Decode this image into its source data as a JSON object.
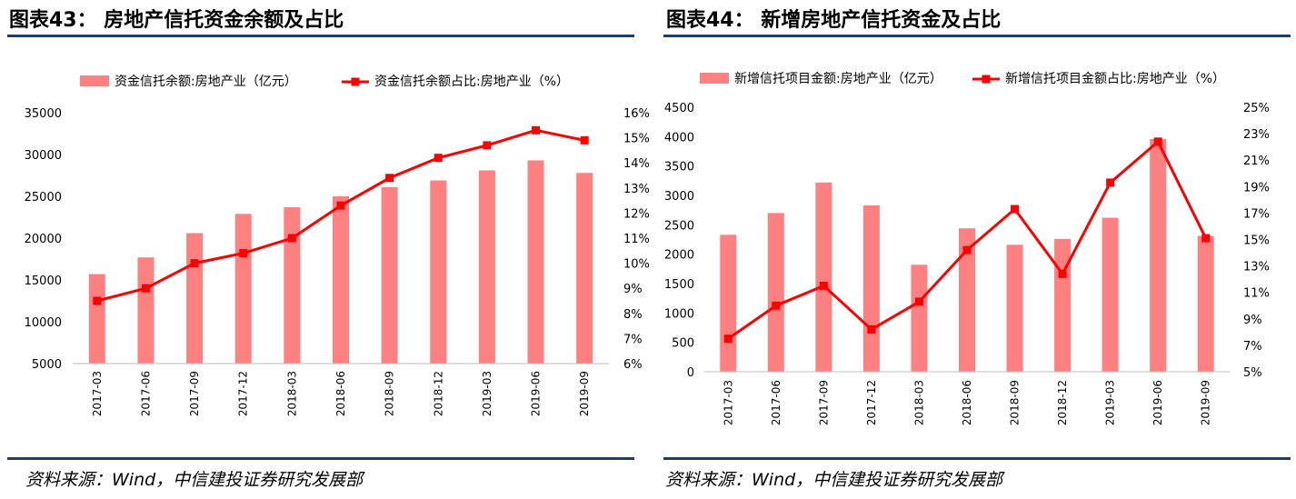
{
  "panels": [
    {
      "title": "图表43：  房地产信托资金余额及占比",
      "source": "资料来源：Wind，中信建投证券研究发展部",
      "chart_data": {
        "type": "bar",
        "categories": [
          "2017-03",
          "2017-06",
          "2017-09",
          "2017-12",
          "2018-03",
          "2018-06",
          "2018-09",
          "2018-12",
          "2019-03",
          "2019-06",
          "2019-09"
        ],
        "series": [
          {
            "name": "资金信托余额:房地产业（亿元）",
            "type": "bar",
            "axis": "left",
            "values": [
              15700,
              17700,
              20600,
              22900,
              23700,
              25000,
              26100,
              26900,
              28100,
              29300,
              27800
            ]
          },
          {
            "name": "资金信托余额占比:房地产业（%）",
            "type": "line",
            "axis": "right",
            "values": [
              8.5,
              9.0,
              10.0,
              10.4,
              11.0,
              12.3,
              13.4,
              14.2,
              14.7,
              15.3,
              14.9
            ]
          }
        ],
        "left_axis": {
          "min": 5000,
          "max": 35000,
          "ticks": [
            "5000",
            "10000",
            "15000",
            "20000",
            "25000",
            "30000",
            "35000"
          ]
        },
        "right_axis": {
          "min": 6,
          "max": 16,
          "ticks": [
            "6%",
            "7%",
            "8%",
            "9%",
            "10%",
            "11%",
            "12%",
            "13%",
            "14%",
            "15%",
            "16%"
          ]
        },
        "legend_position": "top",
        "colors": {
          "bar": "#ff8080",
          "line": "#ff0000"
        }
      }
    },
    {
      "title": "图表44：  新增房地产信托资金及占比",
      "source": "资料来源：Wind，中信建投证券研究发展部",
      "chart_data": {
        "type": "bar",
        "categories": [
          "2017-03",
          "2017-06",
          "2017-09",
          "2017-12",
          "2018-03",
          "2018-06",
          "2018-09",
          "2018-12",
          "2019-03",
          "2019-06",
          "2019-09"
        ],
        "series": [
          {
            "name": "新增信托项目金额:房地产业（亿元）",
            "type": "bar",
            "axis": "left",
            "values": [
              2330,
              2700,
              3220,
              2830,
              1820,
              2440,
              2160,
              2260,
              2620,
              3960,
              2310
            ]
          },
          {
            "name": "新增信托项目金额占比:房地产业（%）",
            "type": "line",
            "axis": "right",
            "values": [
              7.5,
              10.0,
              11.5,
              8.2,
              10.3,
              14.2,
              17.3,
              12.4,
              19.3,
              22.4,
              15.1
            ]
          }
        ],
        "left_axis": {
          "min": 0,
          "max": 4500,
          "ticks": [
            "0",
            "500",
            "1000",
            "1500",
            "2000",
            "2500",
            "3000",
            "3500",
            "4000",
            "4500"
          ]
        },
        "right_axis": {
          "min": 5,
          "max": 25,
          "ticks": [
            "5%",
            "7%",
            "9%",
            "11%",
            "13%",
            "15%",
            "17%",
            "19%",
            "21%",
            "23%",
            "25%"
          ]
        },
        "legend_position": "top",
        "colors": {
          "bar": "#ff8080",
          "line": "#ff0000"
        }
      }
    }
  ]
}
